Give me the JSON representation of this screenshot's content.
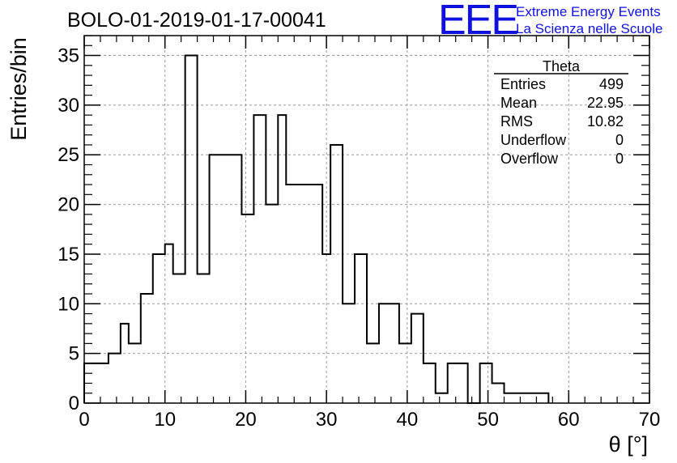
{
  "chart_data": {
    "type": "bar",
    "title": "BOLO-01-2019-01-17-00041",
    "xlabel": "θ [°]",
    "ylabel": "Entries/bin",
    "xlim": [
      0,
      70
    ],
    "ylim": [
      0,
      37
    ],
    "bin_width": 2,
    "grid": true,
    "x_ticks": [
      0,
      10,
      20,
      30,
      40,
      50,
      60,
      70
    ],
    "y_ticks": [
      0,
      5,
      10,
      15,
      20,
      25,
      30,
      35
    ],
    "bins": [
      {
        "x": 0,
        "y": 4
      },
      {
        "x": 2,
        "y": 4
      },
      {
        "x": 3,
        "y": 5
      },
      {
        "x": 4,
        "y": 5
      },
      {
        "x": 4.5,
        "y": 8
      },
      {
        "x": 5.5,
        "y": 6
      },
      {
        "x": 7,
        "y": 11
      },
      {
        "x": 8.5,
        "y": 15
      },
      {
        "x": 10,
        "y": 16
      },
      {
        "x": 11,
        "y": 13
      },
      {
        "x": 12.5,
        "y": 35
      },
      {
        "x": 14,
        "y": 13
      },
      {
        "x": 15.5,
        "y": 25
      },
      {
        "x": 19.5,
        "y": 19
      },
      {
        "x": 21,
        "y": 29
      },
      {
        "x": 22.5,
        "y": 20
      },
      {
        "x": 24,
        "y": 29
      },
      {
        "x": 25,
        "y": 22
      },
      {
        "x": 29.5,
        "y": 15
      },
      {
        "x": 30.5,
        "y": 26
      },
      {
        "x": 32,
        "y": 10
      },
      {
        "x": 33.5,
        "y": 15
      },
      {
        "x": 35,
        "y": 6
      },
      {
        "x": 36.5,
        "y": 10
      },
      {
        "x": 39,
        "y": 6
      },
      {
        "x": 40.5,
        "y": 9
      },
      {
        "x": 42,
        "y": 4
      },
      {
        "x": 43.5,
        "y": 1
      },
      {
        "x": 45,
        "y": 4
      },
      {
        "x": 47.5,
        "y": 0
      },
      {
        "x": 49,
        "y": 4
      },
      {
        "x": 50.5,
        "y": 2
      },
      {
        "x": 52,
        "y": 1
      },
      {
        "x": 57.5,
        "y": 0
      }
    ],
    "x_end": 57.5,
    "stats": {
      "name": "Theta",
      "rows": [
        {
          "label": "Entries",
          "value": "499"
        },
        {
          "label": "Mean",
          "value": "22.95"
        },
        {
          "label": "RMS",
          "value": "10.82"
        },
        {
          "label": "Underflow",
          "value": "0"
        },
        {
          "label": "Overflow",
          "value": "0"
        }
      ]
    }
  },
  "logo": {
    "mark": "EEE",
    "line1": "Extreme Energy Events",
    "line2": "La Scienza nelle Scuole",
    "color": "#1111dd"
  }
}
